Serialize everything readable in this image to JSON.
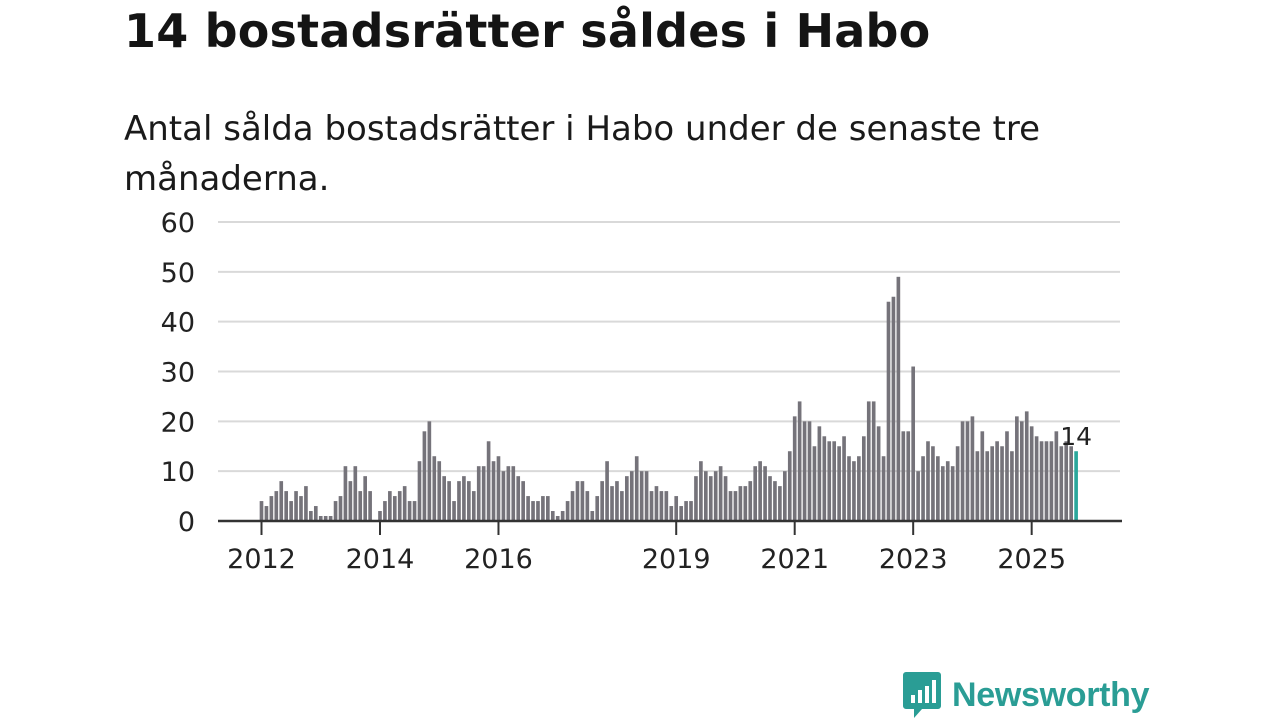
{
  "title": "14 bostadsrätter såldes i Habo",
  "subtitle": "Antal sålda bostadsrätter i Habo under de senaste tre månaderna.",
  "logo_text": "Newsworthy",
  "colors": {
    "bar": "#75737a",
    "highlight": "#2aa79b",
    "grid": "#d9d9d9",
    "axis": "#333333",
    "text": "#222222",
    "brand": "#2a9d95"
  },
  "chart_data": {
    "type": "bar",
    "title": "14 bostadsrätter såldes i Habo",
    "xlabel": "",
    "ylabel": "",
    "ylim": [
      0,
      60
    ],
    "yticks": [
      "0",
      "10",
      "20",
      "30",
      "40",
      "50",
      "60"
    ],
    "xticks": [
      {
        "label": "2012",
        "index": 0
      },
      {
        "label": "2014",
        "index": 24
      },
      {
        "label": "2016",
        "index": 48
      },
      {
        "label": "2019",
        "index": 84
      },
      {
        "label": "2021",
        "index": 108
      },
      {
        "label": "2023",
        "index": 132
      },
      {
        "label": "2025",
        "index": 156
      }
    ],
    "start": "2012-01",
    "values": [
      4,
      3,
      5,
      6,
      8,
      6,
      4,
      6,
      5,
      7,
      2,
      3,
      1,
      1,
      1,
      4,
      5,
      11,
      8,
      11,
      6,
      9,
      6,
      0,
      2,
      4,
      6,
      5,
      6,
      7,
      4,
      4,
      12,
      18,
      20,
      13,
      12,
      9,
      8,
      4,
      8,
      9,
      8,
      6,
      11,
      11,
      16,
      12,
      13,
      10,
      11,
      11,
      9,
      8,
      5,
      4,
      4,
      5,
      5,
      2,
      1,
      2,
      4,
      6,
      8,
      8,
      6,
      2,
      5,
      8,
      12,
      7,
      8,
      6,
      9,
      10,
      13,
      10,
      10,
      6,
      7,
      6,
      6,
      3,
      5,
      3,
      4,
      4,
      9,
      12,
      10,
      9,
      10,
      11,
      9,
      6,
      6,
      7,
      7,
      8,
      11,
      12,
      11,
      9,
      8,
      7,
      10,
      14,
      21,
      24,
      20,
      20,
      15,
      19,
      17,
      16,
      16,
      15,
      17,
      13,
      12,
      13,
      17,
      24,
      24,
      19,
      13,
      44,
      45,
      49,
      18,
      18,
      31,
      10,
      13,
      16,
      15,
      13,
      11,
      12,
      11,
      15,
      20,
      20,
      21,
      14,
      18,
      14,
      15,
      16,
      15,
      18,
      14,
      21,
      20,
      22,
      19,
      17,
      16,
      16,
      16,
      18,
      15,
      16,
      15,
      14
    ],
    "highlight_last": true,
    "last_label": "14"
  }
}
